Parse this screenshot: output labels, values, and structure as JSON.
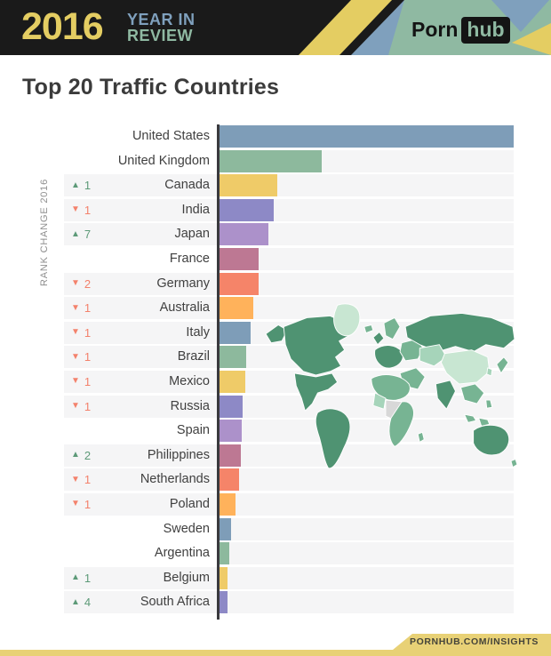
{
  "header": {
    "year": "2016",
    "tagline_line1": "YEAR IN",
    "tagline_line2": "REVIEW",
    "logo_part1": "Porn",
    "logo_part2": "hub",
    "colors": {
      "year": "#e4cd62",
      "tagline1": "#7fa0bd",
      "tagline2": "#8fb9a2",
      "bg": "#1a1a1a"
    }
  },
  "title": "Top 20 Traffic Countries",
  "footer": {
    "link": "PORNHUB.COM/INSIGHTS",
    "bar_color": "#e8d176"
  },
  "chart_data": {
    "type": "bar",
    "orientation": "horizontal",
    "title": "Top 20 Traffic Countries",
    "side_axis_label": "RANK CHANGE 2016",
    "grid": false,
    "legend": false,
    "value_note": "relative traffic, percent of top country (United States = 100), estimated from bar lengths",
    "categories": [
      "United States",
      "United Kingdom",
      "Canada",
      "India",
      "Japan",
      "France",
      "Germany",
      "Australia",
      "Italy",
      "Brazil",
      "Mexico",
      "Russia",
      "Spain",
      "Philippines",
      "Netherlands",
      "Poland",
      "Sweden",
      "Argentina",
      "Belgium",
      "South Africa"
    ],
    "values_percent_of_max": [
      100,
      35,
      20,
      19,
      17.2,
      13.9,
      13.9,
      12,
      11.1,
      9.6,
      9.3,
      8.4,
      8.1,
      7.8,
      7.2,
      6,
      4.5,
      3.9,
      3.3,
      3.3
    ],
    "rank_change_2016": [
      "",
      "",
      "+1",
      "-1",
      "+7",
      "",
      "-2",
      "-1",
      "-1",
      "-1",
      "-1",
      "-1",
      "",
      "+2",
      "-1",
      "-1",
      "",
      "",
      "+1",
      "+4"
    ],
    "rows": [
      {
        "country": "United States",
        "dir": null,
        "change": null,
        "pct": 100,
        "color": "#7e9db8"
      },
      {
        "country": "United Kingdom",
        "dir": null,
        "change": null,
        "pct": 35,
        "color": "#8db99d"
      },
      {
        "country": "Canada",
        "dir": "up",
        "change": "1",
        "pct": 20,
        "color": "#efcb68"
      },
      {
        "country": "India",
        "dir": "down",
        "change": "1",
        "pct": 19,
        "color": "#8d89c6"
      },
      {
        "country": "Japan",
        "dir": "up",
        "change": "7",
        "pct": 17.2,
        "color": "#ac91ca"
      },
      {
        "country": "France",
        "dir": null,
        "change": null,
        "pct": 13.9,
        "color": "#bd7893"
      },
      {
        "country": "Germany",
        "dir": "down",
        "change": "2",
        "pct": 13.9,
        "color": "#f58469"
      },
      {
        "country": "Australia",
        "dir": "down",
        "change": "1",
        "pct": 12,
        "color": "#ffb25b"
      },
      {
        "country": "Italy",
        "dir": "down",
        "change": "1",
        "pct": 11.1,
        "color": "#7e9db8"
      },
      {
        "country": "Brazil",
        "dir": "down",
        "change": "1",
        "pct": 9.6,
        "color": "#8db99d"
      },
      {
        "country": "Mexico",
        "dir": "down",
        "change": "1",
        "pct": 9.3,
        "color": "#efcb68"
      },
      {
        "country": "Russia",
        "dir": "down",
        "change": "1",
        "pct": 8.4,
        "color": "#8d89c6"
      },
      {
        "country": "Spain",
        "dir": null,
        "change": null,
        "pct": 8.1,
        "color": "#ac91ca"
      },
      {
        "country": "Philippines",
        "dir": "up",
        "change": "2",
        "pct": 7.8,
        "color": "#bd7893"
      },
      {
        "country": "Netherlands",
        "dir": "down",
        "change": "1",
        "pct": 7.2,
        "color": "#f58469"
      },
      {
        "country": "Poland",
        "dir": "down",
        "change": "1",
        "pct": 6,
        "color": "#ffb25b"
      },
      {
        "country": "Sweden",
        "dir": null,
        "change": null,
        "pct": 4.5,
        "color": "#7e9db8"
      },
      {
        "country": "Argentina",
        "dir": null,
        "change": null,
        "pct": 3.9,
        "color": "#8db99d"
      },
      {
        "country": "Belgium",
        "dir": "up",
        "change": "1",
        "pct": 3.3,
        "color": "#efcb68"
      },
      {
        "country": "South Africa",
        "dir": "up",
        "change": "4",
        "pct": 3.3,
        "color": "#8d89c6"
      }
    ],
    "palette": [
      "#7e9db8",
      "#8db99d",
      "#efcb68",
      "#8d89c6",
      "#ac91ca",
      "#bd7893",
      "#f58469",
      "#ffb25b"
    ],
    "up_glyph": "▲",
    "down_glyph": "▼",
    "up_color": "#5d9a78",
    "down_color": "#f3826c",
    "track_color": "#f5f5f6",
    "axis_color": "#3a3a3e",
    "map_palette": {
      "dark": "#4f9372",
      "medium": "#77b493",
      "light": "#a6d4ba",
      "mint": "#c8e6d2",
      "gray": "#d8d8d8"
    }
  }
}
